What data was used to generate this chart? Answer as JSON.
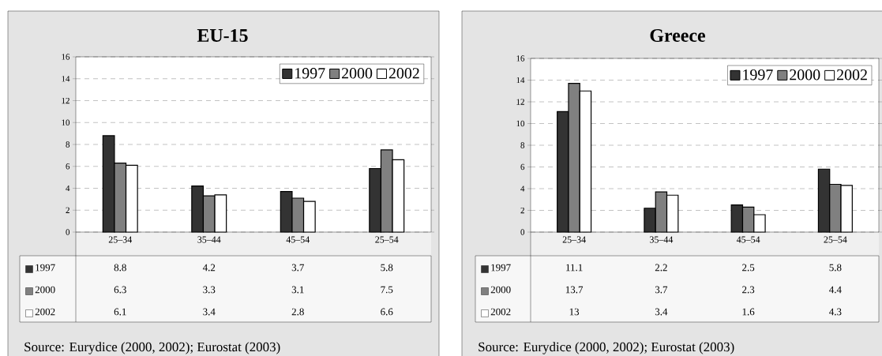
{
  "chart_data": [
    {
      "type": "bar",
      "title": "EU-15",
      "categories": [
        "25–34",
        "35–44",
        "45–54",
        "25–54"
      ],
      "series": [
        {
          "name": "1997",
          "color": "#333333",
          "values": [
            8.8,
            4.2,
            3.7,
            5.8
          ]
        },
        {
          "name": "2000",
          "color": "#808080",
          "values": [
            6.3,
            3.3,
            3.1,
            7.5
          ]
        },
        {
          "name": "2002",
          "color": "#ffffff",
          "values": [
            6.1,
            3.4,
            2.8,
            6.6
          ]
        }
      ],
      "ylim": [
        0,
        16
      ],
      "yticks": [
        0,
        2,
        4,
        6,
        8,
        10,
        12,
        14,
        16
      ],
      "grid": "y",
      "legend": "top right",
      "data_labels": true,
      "annotations": [
        "Source:  Eurydice (2000, 2002); Eurostat (2003)"
      ]
    },
    {
      "type": "bar",
      "title": "Greece",
      "categories": [
        "25–34",
        "35–44",
        "45–54",
        "25–54"
      ],
      "series": [
        {
          "name": "1997",
          "color": "#333333",
          "values": [
            11.1,
            2.2,
            2.5,
            5.8
          ]
        },
        {
          "name": "2000",
          "color": "#808080",
          "values": [
            13.7,
            3.7,
            2.3,
            4.4
          ]
        },
        {
          "name": "2002",
          "color": "#ffffff",
          "values": [
            13,
            3.4,
            1.6,
            4.3
          ]
        }
      ],
      "ylim": [
        0,
        16
      ],
      "yticks": [
        0,
        2,
        4,
        6,
        8,
        10,
        12,
        14,
        16
      ],
      "grid": "y",
      "legend": "top right",
      "data_labels": true,
      "annotations": [
        "Source:  Eurydice (2000, 2002); Eurostat (2003)"
      ]
    }
  ]
}
